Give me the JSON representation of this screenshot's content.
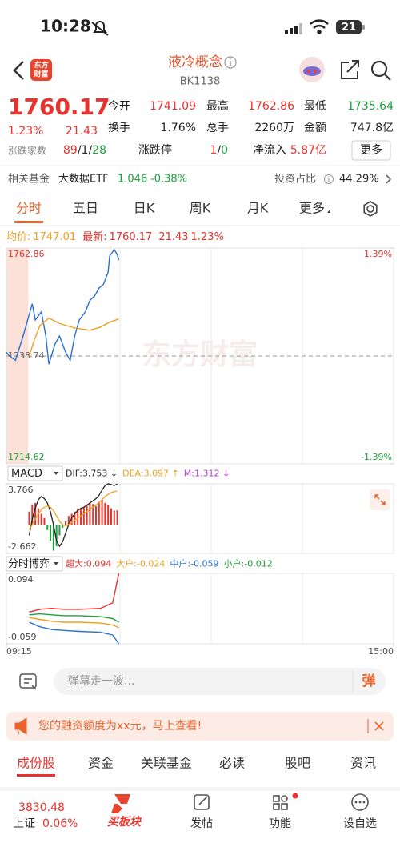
{
  "status_bar": {
    "time": "10:28",
    "battery": "21"
  },
  "header": {
    "logo_lines": [
      "东方",
      "财富"
    ],
    "title": "液冷概念",
    "code": "BK1138"
  },
  "quote": {
    "price": "1760.17",
    "change_pct": "1.23%",
    "change": "21.43",
    "color": "#e8322d",
    "fields": [
      {
        "label": "今开",
        "value": "1741.09",
        "color": "#e8322d"
      },
      {
        "label": "最高",
        "value": "1762.86",
        "color": "#e8322d"
      },
      {
        "label": "最低",
        "value": "1735.64",
        "color": "#1ca23b"
      },
      {
        "label": "换手",
        "value": "1.76%",
        "color": "#222222"
      },
      {
        "label": "总手",
        "value": "2260万",
        "color": "#222222"
      },
      {
        "label": "金额",
        "value": "747.8亿",
        "color": "#222222"
      }
    ],
    "breadth_label": "涨跌家数",
    "breadth": [
      {
        "text": "89",
        "color": "#e8322d"
      },
      {
        "text": "/",
        "color": "#222222"
      },
      {
        "text": "1",
        "color": "#222222"
      },
      {
        "text": "/",
        "color": "#222222"
      },
      {
        "text": "28",
        "color": "#1ca23b"
      }
    ],
    "limit_label": "涨跌停",
    "limit": [
      {
        "text": "1",
        "color": "#e8322d"
      },
      {
        "text": "/",
        "color": "#222222"
      },
      {
        "text": "0",
        "color": "#1ca23b"
      }
    ],
    "inflow_label": "净流入",
    "inflow": "5.87亿",
    "more": "更多"
  },
  "fund": {
    "label": "相关基金",
    "name": "大数据ETF",
    "price": "1.046",
    "change": "-0.38%",
    "ratio_label": "投资占比",
    "ratio": "44.29%"
  },
  "tabs": [
    "分时",
    "五日",
    "日K",
    "周K",
    "月K",
    "更多"
  ],
  "active_tab_index": 0,
  "chart_info": [
    {
      "text": "均价:",
      "color": "#f0a020"
    },
    {
      "text": "1747.01",
      "color": "#f0a020"
    },
    {
      "text": "最新:",
      "color": "#e8322d"
    },
    {
      "text": "1760.17",
      "color": "#e8322d"
    },
    {
      "text": "21.43",
      "color": "#e8322d"
    },
    {
      "text": "1.23%",
      "color": "#e8322d"
    }
  ],
  "price_chart": {
    "watermark": "东方财富",
    "xlim": [
      0,
      255
    ],
    "xticks": [
      {
        "value": 0,
        "label": "09:15"
      },
      {
        "value": 255,
        "label": "15:00"
      }
    ],
    "ylim": [
      1714.62,
      1762.86
    ],
    "yticks": [
      1762.86,
      1738.74,
      1714.62
    ],
    "tick_colors": [
      "#e8322d",
      "#666666",
      "#1ca23b"
    ],
    "y2lim": [
      -1.39,
      1.39
    ],
    "y2ticks": [
      {
        "value": 1.39,
        "label": "1.39%"
      },
      {
        "value": -1.39,
        "label": "-1.39%"
      }
    ],
    "series": [
      {
        "color": "#2a6fd6",
        "x": [
          0,
          2,
          6,
          11,
          14,
          17,
          19,
          23,
          26,
          28,
          32,
          35,
          39,
          42,
          45,
          48,
          52,
          55,
          58,
          61,
          64,
          67,
          68,
          71,
          73,
          74
        ],
        "values": [
          1739.6,
          1738.7,
          1737.8,
          1743.2,
          1746.8,
          1750.4,
          1746.8,
          1748.6,
          1743.2,
          1736.9,
          1741.4,
          1743.2,
          1739.6,
          1737.8,
          1743.2,
          1746.8,
          1748.6,
          1751.2,
          1752.1,
          1753.9,
          1754.8,
          1757.5,
          1761.1,
          1762.5,
          1761.4,
          1760.17
        ]
      },
      {
        "color": "#f0a020",
        "x": [
          15,
          18,
          22,
          28,
          35,
          45,
          55,
          62,
          68,
          74
        ],
        "values": [
          1738.7,
          1742,
          1745.5,
          1747.2,
          1746,
          1745,
          1744.5,
          1745.2,
          1746.3,
          1747.01
        ]
      }
    ]
  },
  "macd_chart": {
    "title": "MACD",
    "ylim": [
      -2.662,
      3.766
    ],
    "yticks": [
      3.766,
      -2.662
    ],
    "x": [
      15,
      17,
      19,
      21,
      23,
      25,
      27,
      29,
      31,
      33,
      35,
      37,
      39,
      41,
      43,
      45,
      47,
      49,
      51,
      53,
      55,
      57,
      59,
      61,
      63,
      65,
      67,
      69,
      71,
      73
    ],
    "bars": {
      "label": "M:1.312 ↓",
      "color": "#b040d0",
      "up_color": "#e8322d",
      "down_color": "#1ca23b",
      "values": [
        1.2,
        1.8,
        2.0,
        1.5,
        1.0,
        0.6,
        -0.5,
        -1.5,
        -2.4,
        -2.0,
        -1.0,
        -0.3,
        0.3,
        0.8,
        1.0,
        1.2,
        1.5,
        1.4,
        1.6,
        1.8,
        2.0,
        1.9,
        1.7,
        2.1,
        2.3,
        2.0,
        1.8,
        1.5,
        1.3,
        1.312
      ]
    },
    "series": [
      {
        "label": "DIF:3.753 ↓",
        "color": "#222222",
        "values": [
          -1,
          0.5,
          1.5,
          2.3,
          2.6,
          2.4,
          2.0,
          1.2,
          0,
          -1.5,
          -2.0,
          -1.6,
          -0.8,
          0,
          0.6,
          1.0,
          1.3,
          1.5,
          1.6,
          1.8,
          2.0,
          2.2,
          2.4,
          2.7,
          3.2,
          3.6,
          3.766,
          3.7,
          3.6,
          3.753
        ]
      },
      {
        "label": "DEA:3.097 ↑",
        "color": "#f0a020",
        "values": [
          -0.5,
          0,
          0.5,
          1.0,
          1.4,
          1.6,
          1.7,
          1.6,
          1.3,
          0.8,
          0.3,
          0,
          -0.1,
          0,
          0.2,
          0.4,
          0.6,
          0.8,
          1.0,
          1.2,
          1.4,
          1.6,
          1.8,
          2.0,
          2.3,
          2.6,
          2.8,
          2.95,
          3.05,
          3.097
        ]
      }
    ]
  },
  "flow_chart": {
    "title": "分时博弈",
    "ylim": [
      -0.059,
      0.094
    ],
    "yticks": [
      0.094,
      -0.059
    ],
    "x": [
      15,
      22,
      30,
      38,
      48,
      62,
      70,
      74
    ],
    "series": [
      {
        "label": "超大:0.094",
        "color": "#e8322d",
        "values": [
          0.01,
          0.016,
          0.018,
          0.016,
          0.016,
          0.018,
          0.03,
          0.094
        ]
      },
      {
        "label": "大户:-0.024",
        "color": "#f0a020",
        "values": [
          -0.002,
          -0.006,
          -0.01,
          -0.012,
          -0.012,
          -0.014,
          -0.018,
          -0.024
        ]
      },
      {
        "label": "中户:-0.059",
        "color": "#2a6fd6",
        "values": [
          -0.012,
          -0.022,
          -0.028,
          -0.03,
          -0.032,
          -0.034,
          -0.04,
          -0.059
        ]
      },
      {
        "label": "小户:-0.012",
        "color": "#1ca23b",
        "values": [
          0.004,
          0.006,
          0.004,
          0.002,
          0.002,
          0.0,
          -0.004,
          -0.012
        ]
      }
    ]
  },
  "comment": {
    "placeholder": "弹幕走一波...",
    "button": "弹"
  },
  "banner": {
    "text": "您的融资额度为xx元，马上查看!"
  },
  "bottom_tabs": [
    "成份股",
    "资金",
    "关联基金",
    "必读",
    "股吧",
    "资讯"
  ],
  "active_bottom_tab_index": 0,
  "nav": {
    "index_value": "3830.48",
    "index_name": "上证",
    "index_change": "0.06%",
    "logo": "买板块",
    "items": [
      "发帖",
      "功能",
      "设自选"
    ]
  }
}
